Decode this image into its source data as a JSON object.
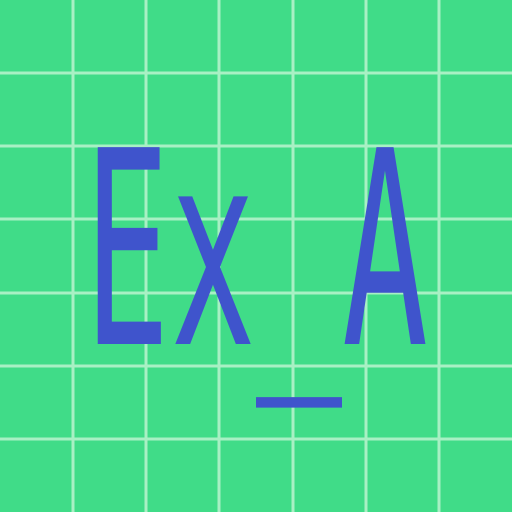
{
  "tile": {
    "text": "Ex_A",
    "background_color": "#40dc88",
    "grid_color": "#a8f0c4",
    "text_color": "#3f54cc",
    "grid_cells": 7
  }
}
